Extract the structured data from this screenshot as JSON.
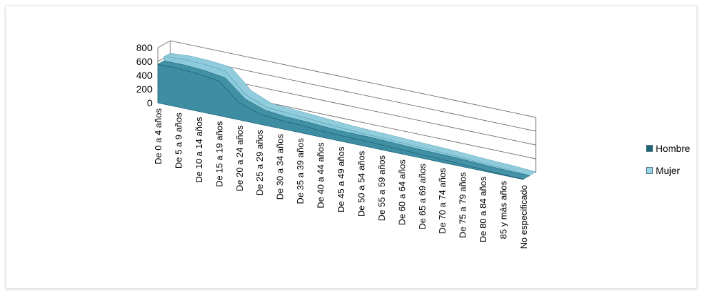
{
  "chart_data": {
    "type": "area",
    "categories": [
      "De 0 a 4 años",
      "De 5 a 9 años",
      "De 10 a 14 años",
      "De 15 a 19 años",
      "De 20 a 24 años",
      "De 25 a 29 años",
      "De 30 a 34 años",
      "De 35 a 39 años",
      "De 40 a 44 años",
      "De 45 a 49 años",
      "De 50 a 54 años",
      "De 55 a 59 años",
      "De 60 a 64 años",
      "De 65 a 69 años",
      "De 70 a 74 años",
      "De 75 a 79 años",
      "De 80 a 84 años",
      "85 y más años",
      "No especificado"
    ],
    "series": [
      {
        "name": "Hombre",
        "values": [
          560,
          560,
          540,
          500,
          250,
          150,
          120,
          110,
          90,
          80,
          80,
          70,
          60,
          50,
          45,
          35,
          20,
          10,
          5
        ]
      },
      {
        "name": "Mujer",
        "values": [
          620,
          640,
          630,
          600,
          320,
          200,
          180,
          160,
          140,
          120,
          110,
          100,
          90,
          80,
          70,
          55,
          40,
          30,
          10
        ]
      }
    ],
    "yticks": [
      "0",
      "200",
      "400",
      "600",
      "800"
    ],
    "ylim": [
      0,
      800
    ],
    "colors": {
      "Hombre": "#3e8ea3",
      "Mujer": "#8ccbdb",
      "hombre_dark": "#1f6378",
      "mujer_dark": "#5fa7bb",
      "grid": "#6b6b6b"
    },
    "legend_position": "right",
    "view": "3d",
    "grid": true
  },
  "legend": [
    {
      "label": "Hombre",
      "color": "#1f6378"
    },
    {
      "label": "Mujer",
      "color": "#9ad3e3"
    }
  ]
}
